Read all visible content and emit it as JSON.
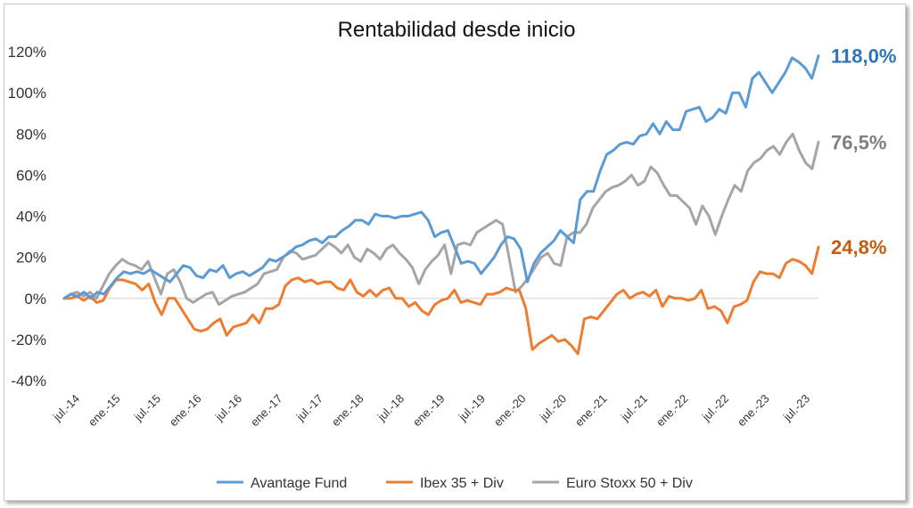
{
  "chart_data": {
    "type": "line",
    "title": "Rentabilidad desde inicio",
    "xlabel": "",
    "ylabel": "",
    "ylim": [
      -40,
      120
    ],
    "y_ticks": [
      "120%",
      "100%",
      "80%",
      "60%",
      "40%",
      "20%",
      "0%",
      "-20%",
      "-40%"
    ],
    "y_tick_values": [
      120,
      100,
      80,
      60,
      40,
      20,
      0,
      -20,
      -40
    ],
    "x_ticks": [
      "jul.-14",
      "ene.-15",
      "jul.-15",
      "ene.-16",
      "jul.-16",
      "ene.-17",
      "jul.-17",
      "ene.-18",
      "jul.-18",
      "ene.-19",
      "jul.-19",
      "ene.-20",
      "jul.-20",
      "ene.-21",
      "jul.-21",
      "ene.-22",
      "jul.-22",
      "ene.-23",
      "jul.-23"
    ],
    "grid": false,
    "legend_position": "bottom",
    "series": [
      {
        "name": "Avantage Fund",
        "color": "#5b9bd5",
        "end_label": "118,0%",
        "values": [
          0,
          2,
          1,
          3,
          0,
          3,
          2,
          6,
          10,
          13,
          12,
          13,
          12,
          14,
          12,
          10,
          8,
          12,
          16,
          15,
          11,
          10,
          14,
          13,
          16,
          10,
          12,
          13,
          11,
          13,
          15,
          19,
          18,
          20,
          22,
          25,
          26,
          28,
          29,
          27,
          30,
          30,
          33,
          35,
          38,
          38,
          36,
          41,
          40,
          40,
          39,
          40,
          40,
          41,
          42,
          38,
          30,
          32,
          33,
          25,
          17,
          18,
          17,
          12,
          16,
          20,
          26,
          30,
          29,
          24,
          8,
          17,
          22,
          25,
          28,
          33,
          30,
          27,
          48,
          52,
          52,
          62,
          70,
          72,
          75,
          76,
          75,
          79,
          80,
          85,
          80,
          86,
          82,
          82,
          91,
          92,
          93,
          86,
          88,
          92,
          90,
          100,
          100,
          93,
          107,
          110,
          105,
          100,
          105,
          110,
          117,
          115,
          112,
          107,
          118
        ]
      },
      {
        "name": "Ibex 35 + Div",
        "color": "#ed7d31",
        "end_label": "24,8%",
        "values": [
          0,
          0,
          1,
          -1,
          1,
          -2,
          -1,
          5,
          9,
          9,
          8,
          7,
          4,
          7,
          -2,
          -8,
          0,
          0,
          -5,
          -10,
          -15,
          -16,
          -15,
          -12,
          -10,
          -18,
          -14,
          -13,
          -12,
          -8,
          -12,
          -5,
          -5,
          -3,
          6,
          9,
          10,
          8,
          9,
          7,
          8,
          8,
          5,
          4,
          9,
          3,
          1,
          4,
          1,
          4,
          5,
          0,
          0,
          -4,
          -2,
          -6,
          -8,
          -3,
          -1,
          0,
          4,
          -2,
          -1,
          -2,
          -3,
          2,
          2,
          3,
          5,
          4,
          4,
          -5,
          -25,
          -22,
          -20,
          -18,
          -21,
          -20,
          -23,
          -27,
          -10,
          -9,
          -10,
          -6,
          -2,
          2,
          4,
          0,
          2,
          3,
          1,
          4,
          -4,
          1,
          0,
          0,
          -1,
          0,
          4,
          -5,
          -4,
          -6,
          -12,
          -4,
          -3,
          -1,
          8,
          13,
          12,
          12,
          10,
          17,
          19,
          18,
          16,
          12,
          25
        ]
      },
      {
        "name": "Euro Stoxx 50 + Div",
        "color": "#a5a5a5",
        "end_label": "76,5%",
        "values": [
          0,
          2,
          3,
          1,
          3,
          0,
          6,
          12,
          16,
          19,
          17,
          16,
          14,
          18,
          10,
          2,
          12,
          14,
          8,
          0,
          -2,
          0,
          2,
          3,
          -3,
          -1,
          1,
          2,
          3,
          5,
          7,
          12,
          13,
          14,
          20,
          23,
          22,
          19,
          20,
          21,
          24,
          27,
          25,
          22,
          26,
          20,
          18,
          24,
          22,
          19,
          24,
          26,
          22,
          19,
          15,
          7,
          14,
          18,
          21,
          26,
          12,
          26,
          27,
          26,
          32,
          34,
          36,
          38,
          36,
          20,
          3,
          6,
          10,
          15,
          20,
          22,
          17,
          16,
          30,
          32,
          32,
          36,
          44,
          48,
          52,
          54,
          55,
          57,
          60,
          55,
          57,
          64,
          61,
          55,
          50,
          50,
          47,
          44,
          36,
          45,
          40,
          31,
          40,
          48,
          55,
          52,
          62,
          66,
          68,
          72,
          74,
          70,
          76,
          80,
          72,
          66,
          63,
          76
        ]
      }
    ]
  }
}
